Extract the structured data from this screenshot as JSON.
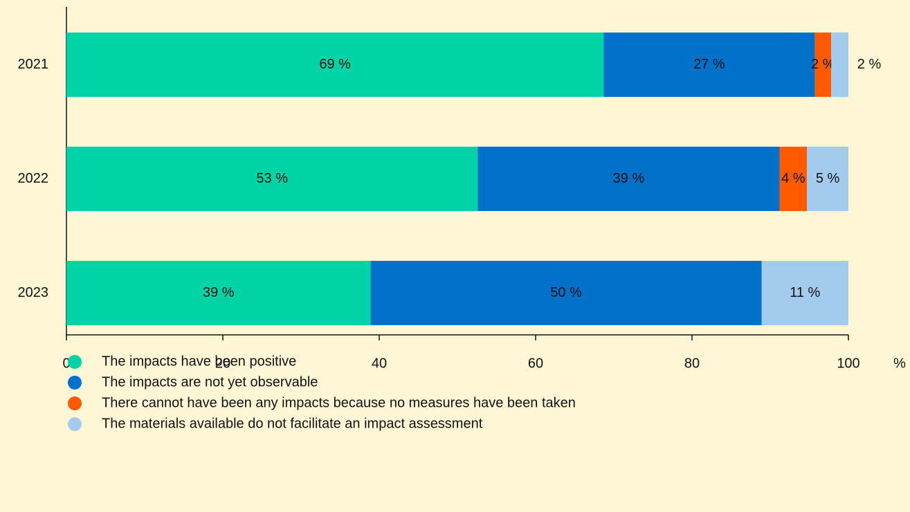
{
  "chart_data": {
    "type": "stacked_barh",
    "categories": [
      "2021",
      "2022",
      "2023"
    ],
    "series": [
      {
        "name": "The impacts have been positive",
        "color": "#00d4a6",
        "values": [
          68.7,
          52.6,
          38.9
        ],
        "value_labels": [
          "69 %",
          "53 %",
          "39 %"
        ]
      },
      {
        "name": "The impacts are not yet observable",
        "color": "#0070c8",
        "values": [
          27,
          38.6,
          50
        ],
        "value_labels": [
          "27 %",
          "39 %",
          "50 %"
        ]
      },
      {
        "name": "There cannot have been any impacts because no measures have been taken",
        "color": "#ff5a00",
        "values": [
          2.1,
          3.5,
          null
        ],
        "value_labels": [
          "2 %",
          "4 %",
          null
        ]
      },
      {
        "name": "The materials available do not facilitate an impact assessment",
        "color": "#a3cbee",
        "values": [
          2.2,
          5.3,
          11.1
        ],
        "value_labels": [
          "2 %",
          "5 %",
          "11 %"
        ]
      }
    ],
    "xlabel": "%",
    "xlim": [
      0,
      100
    ],
    "xticks": [
      0,
      20,
      40,
      60,
      80,
      100
    ]
  }
}
